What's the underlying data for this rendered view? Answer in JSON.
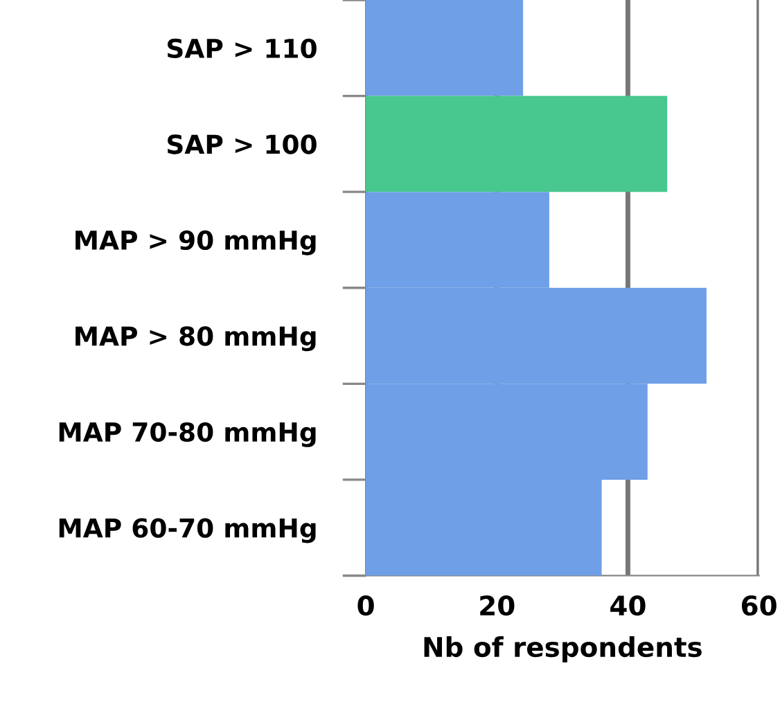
{
  "chart_data": {
    "type": "bar",
    "orientation": "horizontal",
    "xlabel": "Nb of respondents",
    "categories": [
      "SAP > 110",
      "SAP > 100",
      "MAP > 90 mmHg",
      "MAP > 80 mmHg",
      "MAP 70-80 mmHg",
      "MAP 60-70 mmHg"
    ],
    "values": [
      24,
      46,
      28,
      52,
      43,
      36
    ],
    "colors": [
      "#6f9fe6",
      "#48c78e",
      "#6f9fe6",
      "#6f9fe6",
      "#6f9fe6",
      "#6f9fe6"
    ],
    "xlim": [
      0,
      60
    ],
    "xticks": [
      0,
      20,
      40,
      60
    ],
    "grid": "x"
  }
}
